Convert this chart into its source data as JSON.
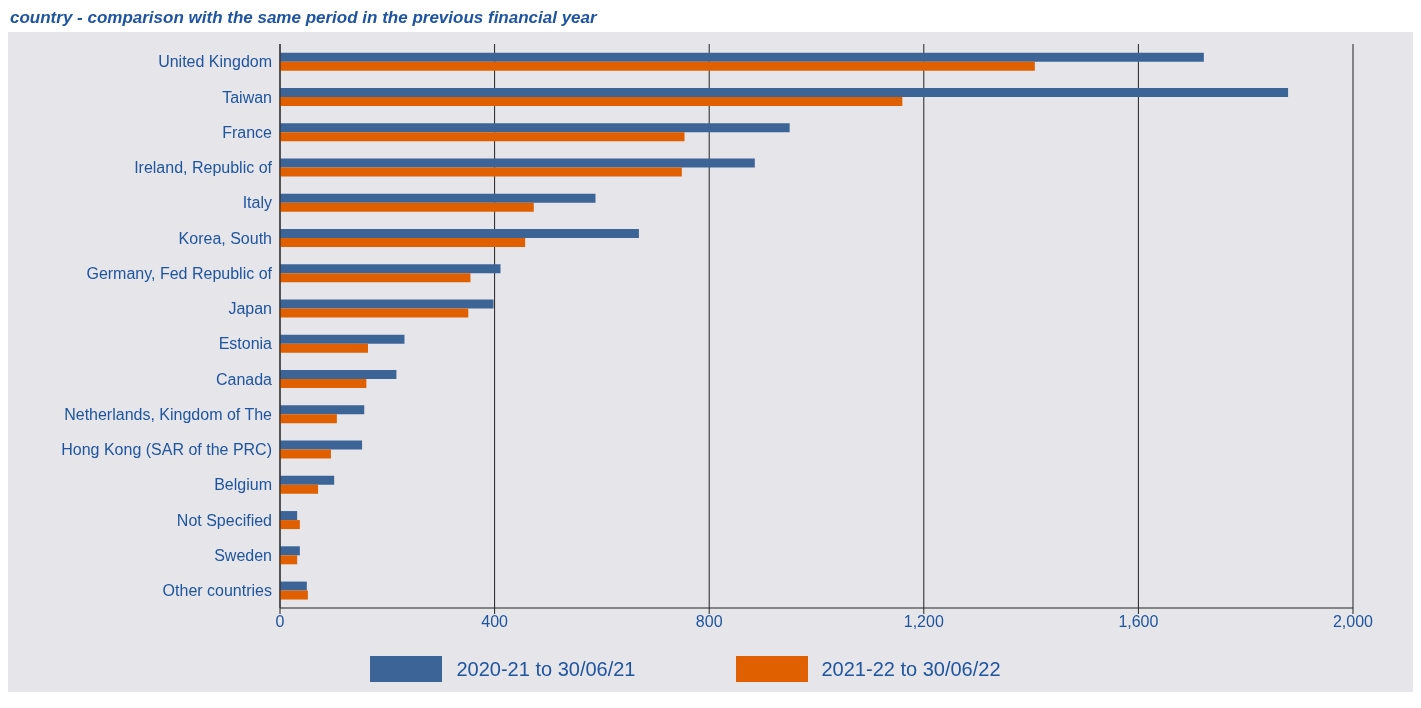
{
  "chart_data": {
    "type": "bar",
    "orientation": "horizontal",
    "title": "country - comparison with the same period in the previous financial year",
    "categories": [
      "United Kingdom",
      "Taiwan",
      "France",
      "Ireland, Republic of",
      "Italy",
      "Korea, South",
      "Germany, Fed Republic of",
      "Japan",
      "Estonia",
      "Canada",
      "Netherlands, Kingdom of The",
      "Hong Kong (SAR of the PRC)",
      "Belgium",
      "Not Specified",
      "Sweden",
      "Other countries"
    ],
    "series": [
      {
        "name": "2020-21 to 30/06/21",
        "color": "#3c6496",
        "values": [
          1722,
          1879,
          950,
          885,
          588,
          669,
          411,
          398,
          232,
          217,
          157,
          153,
          101,
          32,
          37,
          50
        ]
      },
      {
        "name": "2021-22 to 30/06/22",
        "color": "#e06000",
        "values": [
          1407,
          1160,
          754,
          749,
          473,
          457,
          355,
          351,
          164,
          161,
          106,
          95,
          71,
          37,
          32,
          52
        ]
      }
    ],
    "xlim": [
      0,
      2000
    ],
    "xticks": [
      0,
      {
        "value": 400,
        "label": "400"
      },
      {
        "value": 800,
        "label": "800"
      },
      {
        "value": 1200,
        "label": "1,200"
      },
      {
        "value": 1600,
        "label": "1,600"
      },
      {
        "value": 2000,
        "label": "2,000"
      }
    ],
    "grid": "x",
    "legend": "bottom"
  }
}
